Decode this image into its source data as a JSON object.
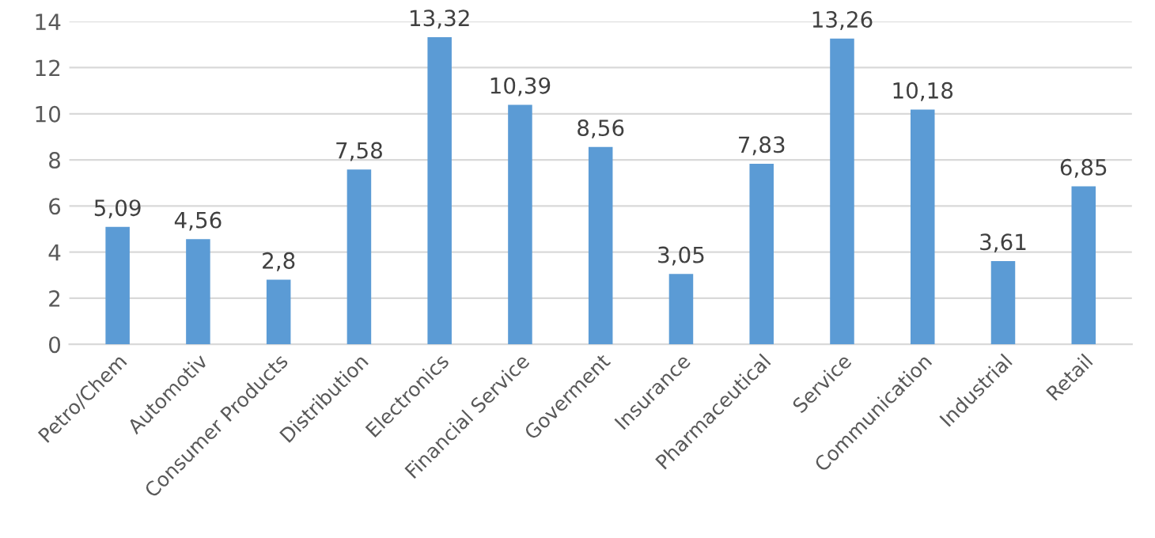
{
  "chart_data": {
    "type": "bar",
    "categories": [
      "Petro/Chem",
      "Automotiv",
      "Consumer Products",
      "Distribution",
      "Electronics",
      "Financial Service",
      "Goverment",
      "Insurance",
      "Pharmaceutical",
      "Service",
      "Communication",
      "Industrial",
      "Retail"
    ],
    "values": [
      5.09,
      4.56,
      2.8,
      7.58,
      13.32,
      10.39,
      8.56,
      3.05,
      7.83,
      13.26,
      10.18,
      3.61,
      6.85
    ],
    "value_labels": [
      "5,09",
      "4,56",
      "2,8",
      "7,58",
      "13,32",
      "10,39",
      "8,56",
      "3,05",
      "7,83",
      "13,26",
      "10,18",
      "3,61",
      "6,85"
    ],
    "color": "#5b9bd5",
    "ylim": [
      0,
      14
    ],
    "yticks": [
      0,
      2,
      4,
      6,
      8,
      10,
      12,
      14
    ],
    "grid": "y"
  }
}
